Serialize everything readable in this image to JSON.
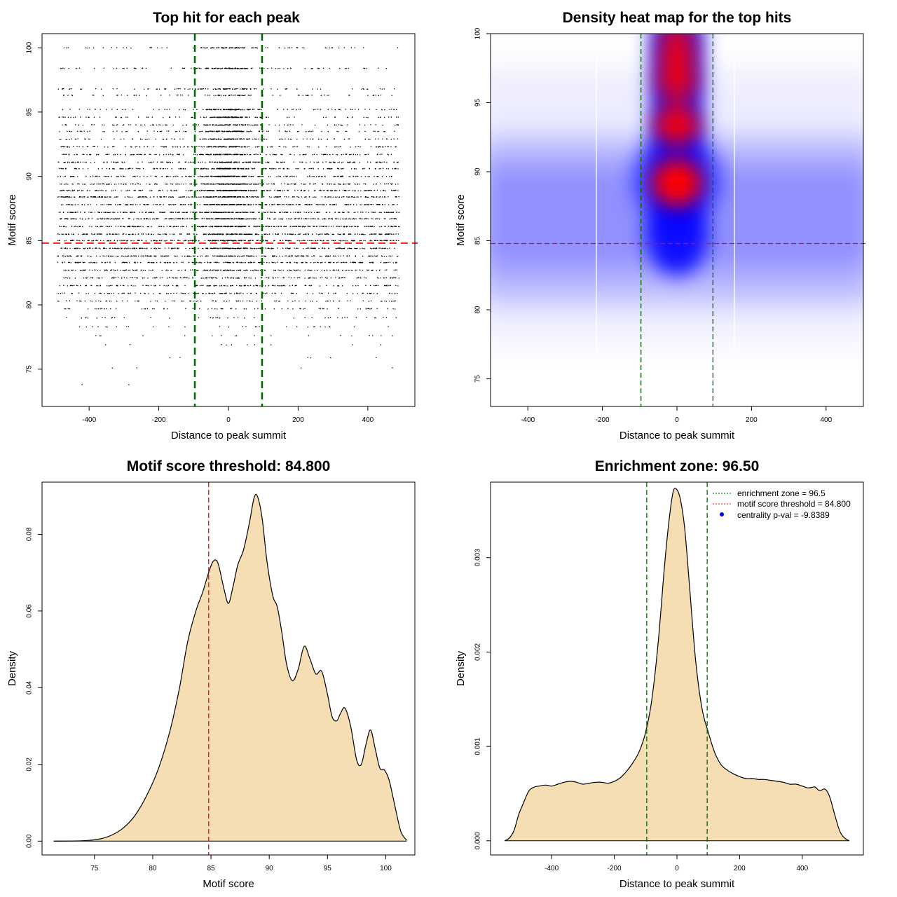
{
  "chart_data": [
    {
      "type": "scatter",
      "title": "Top hit for each peak",
      "xlabel": "Distance to peak summit",
      "ylabel": "Motif score",
      "xlim": [
        -535,
        535
      ],
      "ylim": [
        72.1,
        101.1
      ],
      "xticks": [
        -400,
        -200,
        0,
        200,
        400
      ],
      "yticks": [
        75,
        80,
        85,
        90,
        95,
        100
      ],
      "enrichment_zone": [
        -96.5,
        96.5
      ],
      "threshold": 84.8,
      "colors": {
        "points": "#000000",
        "zone": "#006400",
        "threshold": "#ff0000"
      },
      "score_levels": [
        100,
        98.4,
        96.8,
        96.3,
        95.2,
        94.6,
        94.0,
        93.5,
        92.9,
        92.3,
        91.7,
        91.1,
        90.6,
        90.0,
        89.4,
        88.9,
        88.4,
        87.8,
        87.2,
        86.7,
        86.1,
        85.5,
        85.0,
        84.4,
        83.8,
        83.3,
        82.7,
        82.1,
        81.5,
        80.9,
        80.3,
        79.7,
        79.0,
        78.3,
        77.6,
        76.9,
        75.9,
        75.1,
        73.8
      ],
      "level_counts": [
        120,
        130,
        110,
        90,
        150,
        160,
        170,
        170,
        180,
        200,
        220,
        240,
        260,
        280,
        300,
        310,
        320,
        330,
        330,
        330,
        320,
        310,
        300,
        290,
        270,
        250,
        220,
        190,
        160,
        130,
        100,
        70,
        45,
        30,
        18,
        10,
        6,
        4,
        2
      ],
      "central_fraction": [
        0.55,
        0.45,
        0.4,
        0.3,
        0.5,
        0.5,
        0.45,
        0.45,
        0.4,
        0.35,
        0.3,
        0.3,
        0.3,
        0.32,
        0.33,
        0.3,
        0.25,
        0.22,
        0.2,
        0.2,
        0.18,
        0.18,
        0.16,
        0.15,
        0.12,
        0.1,
        0.1,
        0.08,
        0.08,
        0.06,
        0.06,
        0.05,
        0.05,
        0.05,
        0.05,
        0.05,
        0.05,
        0.05,
        0.05
      ]
    },
    {
      "type": "heatmap",
      "title": "Density heat map for the top hits",
      "xlabel": "Distance to peak summit",
      "ylabel": "Motif score",
      "xlim": [
        -500,
        500
      ],
      "ylim": [
        73,
        100
      ],
      "xticks": [
        -400,
        -200,
        0,
        200,
        400
      ],
      "yticks": [
        75,
        80,
        85,
        90,
        95,
        100
      ],
      "enrichment_zone": [
        -96.5,
        96.5
      ],
      "threshold": 84.8,
      "colors": {
        "low": "#ffffff",
        "mid": "#0000ff",
        "high": "#ff0000",
        "zone": "#006400",
        "threshold": "#ff0000"
      },
      "hotspots": [
        {
          "x": 0,
          "y": 89.2,
          "weight": 1.0
        },
        {
          "x": 0,
          "y": 93.4,
          "weight": 0.75
        },
        {
          "x": 0,
          "y": 96.5,
          "weight": 0.62
        },
        {
          "x": 0,
          "y": 98.4,
          "weight": 0.55
        },
        {
          "x": 0,
          "y": 100,
          "weight": 0.3
        }
      ]
    },
    {
      "type": "area",
      "title": "Motif score threshold: 84.800",
      "xlabel": "Motif score",
      "ylabel": "Density",
      "xlim": [
        70.5,
        102.5
      ],
      "ylim": [
        -0.0036,
        0.0936
      ],
      "xticks": [
        75,
        80,
        85,
        90,
        95,
        100
      ],
      "yticks": [
        0.0,
        0.02,
        0.04,
        0.06,
        0.08
      ],
      "ytick_labels": [
        "0.00",
        "0.02",
        "0.04",
        "0.06",
        "0.08"
      ],
      "threshold": 84.8,
      "colors": {
        "fill": "#f5deb3",
        "line": "#000000",
        "threshold": "#ff0000"
      },
      "x": [
        71.5,
        74,
        75.5,
        76.5,
        77.5,
        78.5,
        79.5,
        80.5,
        81.5,
        82.3,
        83.0,
        83.7,
        84.3,
        84.8,
        85.2,
        85.6,
        86.1,
        86.5,
        86.9,
        87.3,
        87.8,
        88.3,
        88.7,
        89.0,
        89.4,
        89.8,
        90.3,
        90.7,
        91.1,
        91.5,
        92.0,
        92.5,
        93.0,
        93.5,
        94.0,
        94.5,
        95.0,
        95.4,
        95.8,
        96.1,
        96.5,
        97.0,
        97.5,
        97.9,
        98.3,
        98.7,
        99.1,
        99.5,
        99.9,
        100.3,
        100.8,
        101.3,
        101.8
      ],
      "y": [
        0.0,
        0.0001,
        0.0006,
        0.0016,
        0.0035,
        0.0068,
        0.012,
        0.019,
        0.029,
        0.04,
        0.052,
        0.06,
        0.065,
        0.07,
        0.073,
        0.0725,
        0.066,
        0.062,
        0.0665,
        0.072,
        0.076,
        0.083,
        0.0895,
        0.0898,
        0.084,
        0.073,
        0.064,
        0.061,
        0.054,
        0.046,
        0.0418,
        0.045,
        0.0508,
        0.0475,
        0.0436,
        0.0443,
        0.0383,
        0.0324,
        0.0314,
        0.0332,
        0.0347,
        0.0298,
        0.0212,
        0.02,
        0.0252,
        0.029,
        0.024,
        0.019,
        0.0185,
        0.0158,
        0.009,
        0.0025,
        0.0002
      ]
    },
    {
      "type": "area",
      "title": "Enrichment zone: 96.50",
      "xlabel": "Distance to peak summit",
      "ylabel": "Density",
      "xlim": [
        -595,
        595
      ],
      "ylim": [
        -0.00015,
        0.0038
      ],
      "xticks": [
        -400,
        -200,
        0,
        200,
        400
      ],
      "yticks": [
        0.0,
        0.001,
        0.002,
        0.003
      ],
      "ytick_labels": [
        "0.000",
        "0.001",
        "0.002",
        "0.003"
      ],
      "enrichment_zone": [
        -96.5,
        96.5
      ],
      "colors": {
        "fill": "#f5deb3",
        "line": "#000000",
        "zone": "#006400"
      },
      "legend": [
        {
          "label": "enrichment zone = 96.5",
          "style": "dotted",
          "color": "#006400"
        },
        {
          "label": "motif score threshold = 84.800",
          "style": "dotted",
          "color": "#ff0000"
        },
        {
          "label": "centrality p-val = -9.8389",
          "style": "point",
          "color": "#0000ff"
        }
      ],
      "x": [
        -550,
        -535,
        -520,
        -505,
        -490,
        -480,
        -470,
        -455,
        -440,
        -420,
        -400,
        -380,
        -360,
        -340,
        -320,
        -300,
        -280,
        -260,
        -240,
        -220,
        -200,
        -180,
        -160,
        -140,
        -120,
        -100,
        -80,
        -60,
        -40,
        -25,
        -12,
        0,
        12,
        25,
        40,
        60,
        80,
        100,
        120,
        140,
        160,
        180,
        200,
        220,
        240,
        260,
        280,
        300,
        320,
        340,
        360,
        380,
        400,
        420,
        440,
        455,
        470,
        480,
        490,
        505,
        520,
        535,
        550
      ],
      "y": [
        0.0,
        3e-05,
        0.00011,
        0.00028,
        0.0004,
        0.00048,
        0.00054,
        0.00057,
        0.00058,
        0.00059,
        0.00058,
        0.0006,
        0.00062,
        0.00063,
        0.00062,
        0.0006,
        0.00061,
        0.00062,
        0.00062,
        0.00061,
        0.00063,
        0.00067,
        0.00074,
        0.00083,
        0.00095,
        0.00115,
        0.0015,
        0.0021,
        0.0029,
        0.0034,
        0.0037,
        0.00372,
        0.0036,
        0.0033,
        0.0027,
        0.0019,
        0.0014,
        0.00115,
        0.00094,
        0.00081,
        0.00075,
        0.00071,
        0.00068,
        0.00066,
        0.00066,
        0.00065,
        0.00065,
        0.00064,
        0.00063,
        0.00062,
        0.0006,
        0.0006,
        0.00058,
        0.00056,
        0.00057,
        0.00053,
        0.00055,
        0.00052,
        0.00044,
        0.00026,
        0.0001,
        3e-05,
        0.0
      ]
    }
  ]
}
